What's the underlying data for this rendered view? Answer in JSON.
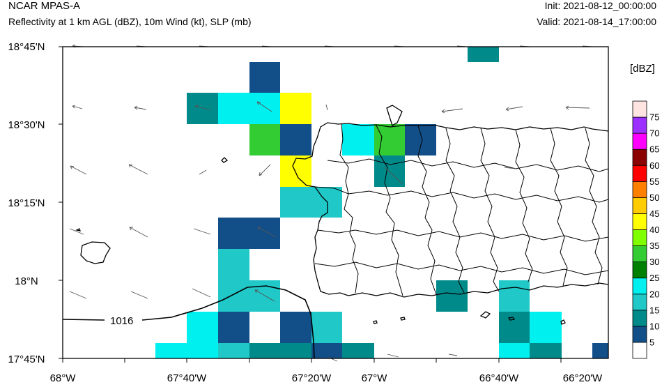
{
  "header": {
    "model": "NCAR MPAS-A",
    "field": "Reflectivity at 1 km AGL (dBZ), 10m Wind (kt), SLP (mb)",
    "init": "Init: 2021-08-12_00:00:00",
    "valid": "Valid: 2021-08-14_17:00:00"
  },
  "map": {
    "lat_labels": [
      "18°45'N",
      "18°30'N",
      "18°15'N",
      "18°N",
      "17°45'N"
    ],
    "lon_labels": [
      "68°W",
      "67°40'W",
      "67°20'W",
      "67°W",
      "66°40'W",
      "66°20'W"
    ],
    "lon_range": [
      -68.0,
      -66.25
    ],
    "lat_range": [
      17.75,
      18.75
    ],
    "isobar": {
      "value": 1016,
      "label": "1016"
    }
  },
  "colorbar": {
    "unit": "[dBZ]",
    "levels": [
      "5",
      "10",
      "15",
      "20",
      "25",
      "30",
      "35",
      "40",
      "45",
      "50",
      "55",
      "60",
      "65",
      "70",
      "75"
    ],
    "colors": [
      "#ffffff",
      "#124f88",
      "#008a8a",
      "#20c8c8",
      "#00f0f0",
      "#008000",
      "#33cc33",
      "#80ff00",
      "#ffff00",
      "#ffcc00",
      "#ff8000",
      "#ff0000",
      "#8b0000",
      "#ff00ff",
      "#9b30ff",
      "#ffe4e1"
    ]
  }
}
